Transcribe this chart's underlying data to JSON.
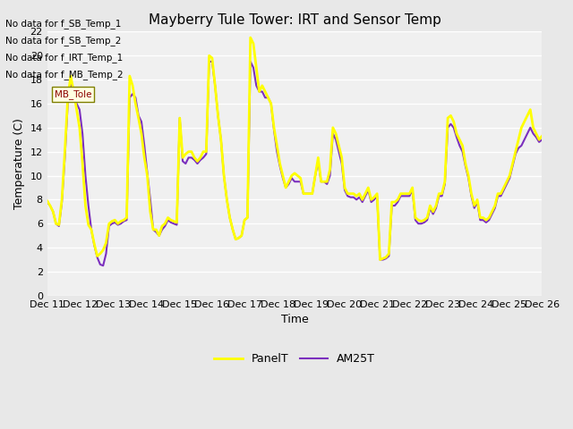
{
  "title": "Mayberry Tule Tower: IRT and Sensor Temp",
  "xlabel": "Time",
  "ylabel": "Temperature (C)",
  "ylim": [
    0,
    22
  ],
  "yticks": [
    0,
    2,
    4,
    6,
    8,
    10,
    12,
    14,
    16,
    18,
    20,
    22
  ],
  "panel_color": "#ffff00",
  "am25_color": "#7b2fbe",
  "panel_linewidth": 2.0,
  "am25_linewidth": 1.5,
  "legend_labels": [
    "PanelT",
    "AM25T"
  ],
  "no_data_texts": [
    "No data for f_SB_Temp_1",
    "No data for f_SB_Temp_2",
    "No data for f_IRT_Temp_1",
    "No data for f_MB_Temp_2"
  ],
  "bg_color": "#e8e8e8",
  "plot_bg": "#f0f0f0",
  "x_tick_labels": [
    "Dec 11",
    "Dec 12",
    "Dec 13",
    "Dec 14",
    "Dec 15",
    "Dec 16",
    "Dec 17",
    "Dec 18",
    "Dec 19",
    "Dec 20",
    "Dec 21",
    "Dec 22",
    "Dec 23",
    "Dec 24",
    "Dec 25",
    "Dec 26",
    ""
  ],
  "panel_data": [
    7.9,
    7.5,
    7.0,
    6.0,
    5.9,
    8.0,
    12.0,
    16.5,
    18.3,
    17.0,
    15.5,
    14.0,
    11.0,
    7.5,
    5.9,
    5.5,
    4.3,
    3.3,
    3.5,
    3.8,
    4.4,
    6.0,
    6.2,
    6.3,
    6.0,
    6.2,
    6.3,
    6.5,
    18.3,
    17.5,
    16.0,
    14.8,
    13.5,
    11.5,
    10.0,
    7.0,
    5.5,
    5.5,
    5.0,
    5.8,
    6.0,
    6.5,
    6.3,
    6.2,
    6.1,
    14.8,
    11.5,
    11.8,
    12.0,
    12.0,
    11.5,
    11.2,
    11.5,
    12.0,
    12.0,
    20.0,
    19.8,
    17.5,
    15.0,
    13.0,
    10.0,
    8.0,
    6.5,
    5.5,
    4.7,
    4.8,
    5.0,
    6.3,
    6.5,
    21.5,
    21.0,
    19.0,
    17.0,
    17.5,
    17.0,
    16.5,
    16.0,
    14.0,
    12.5,
    11.0,
    10.0,
    9.0,
    9.5,
    10.0,
    10.2,
    10.0,
    9.8,
    8.5,
    8.5,
    8.5,
    8.5,
    10.0,
    11.5,
    9.5,
    9.5,
    9.5,
    10.5,
    14.0,
    13.5,
    12.5,
    11.5,
    9.0,
    8.5,
    8.5,
    8.5,
    8.3,
    8.5,
    8.0,
    8.5,
    9.0,
    8.0,
    8.2,
    8.5,
    3.0,
    3.1,
    3.2,
    3.5,
    7.8,
    7.8,
    8.0,
    8.5,
    8.5,
    8.5,
    8.5,
    9.0,
    6.5,
    6.3,
    6.2,
    6.3,
    6.5,
    7.5,
    7.0,
    7.5,
    8.5,
    8.5,
    9.5,
    14.8,
    15.0,
    14.5,
    13.5,
    13.0,
    12.5,
    11.0,
    10.0,
    8.5,
    7.5,
    8.0,
    6.5,
    6.5,
    6.3,
    6.5,
    7.0,
    7.5,
    8.5,
    8.5,
    9.0,
    9.5,
    10.0,
    11.0,
    12.0,
    13.0,
    14.0,
    14.5,
    15.0,
    15.5,
    14.0,
    13.5,
    13.0,
    13.3
  ],
  "am25_data": [
    7.8,
    7.5,
    7.0,
    6.0,
    5.8,
    7.8,
    11.5,
    16.0,
    18.0,
    16.5,
    16.0,
    15.5,
    13.5,
    10.0,
    7.5,
    5.5,
    4.2,
    3.2,
    2.6,
    2.5,
    3.5,
    5.8,
    6.0,
    6.1,
    5.9,
    6.0,
    6.2,
    6.3,
    16.5,
    16.8,
    16.5,
    15.0,
    14.5,
    12.5,
    10.2,
    8.0,
    5.5,
    5.3,
    5.0,
    5.5,
    5.8,
    6.3,
    6.1,
    6.0,
    5.9,
    14.8,
    11.2,
    11.0,
    11.5,
    11.5,
    11.3,
    11.0,
    11.3,
    11.5,
    11.8,
    19.5,
    19.5,
    17.5,
    15.0,
    13.0,
    10.0,
    8.0,
    6.5,
    5.5,
    4.7,
    4.8,
    5.0,
    6.3,
    6.5,
    19.5,
    19.0,
    17.5,
    17.0,
    17.0,
    16.5,
    16.5,
    16.0,
    13.8,
    12.0,
    10.8,
    9.8,
    9.0,
    9.3,
    9.8,
    9.5,
    9.5,
    9.5,
    8.5,
    8.5,
    8.5,
    8.5,
    10.0,
    11.2,
    9.5,
    9.5,
    9.3,
    10.0,
    13.5,
    13.0,
    12.0,
    11.0,
    8.8,
    8.3,
    8.2,
    8.2,
    8.0,
    8.2,
    7.8,
    8.3,
    8.8,
    7.8,
    8.0,
    8.3,
    3.0,
    3.0,
    3.1,
    3.3,
    7.5,
    7.5,
    7.8,
    8.3,
    8.3,
    8.3,
    8.3,
    8.8,
    6.3,
    6.0,
    6.0,
    6.1,
    6.3,
    7.3,
    6.8,
    7.3,
    8.3,
    8.3,
    9.3,
    14.0,
    14.3,
    14.0,
    13.2,
    12.5,
    12.0,
    10.8,
    9.8,
    8.3,
    7.3,
    7.8,
    6.3,
    6.3,
    6.1,
    6.3,
    6.8,
    7.3,
    8.3,
    8.3,
    8.8,
    9.3,
    9.8,
    10.8,
    11.8,
    12.3,
    12.5,
    13.0,
    13.5,
    14.0,
    13.5,
    13.2,
    12.8,
    13.0
  ]
}
